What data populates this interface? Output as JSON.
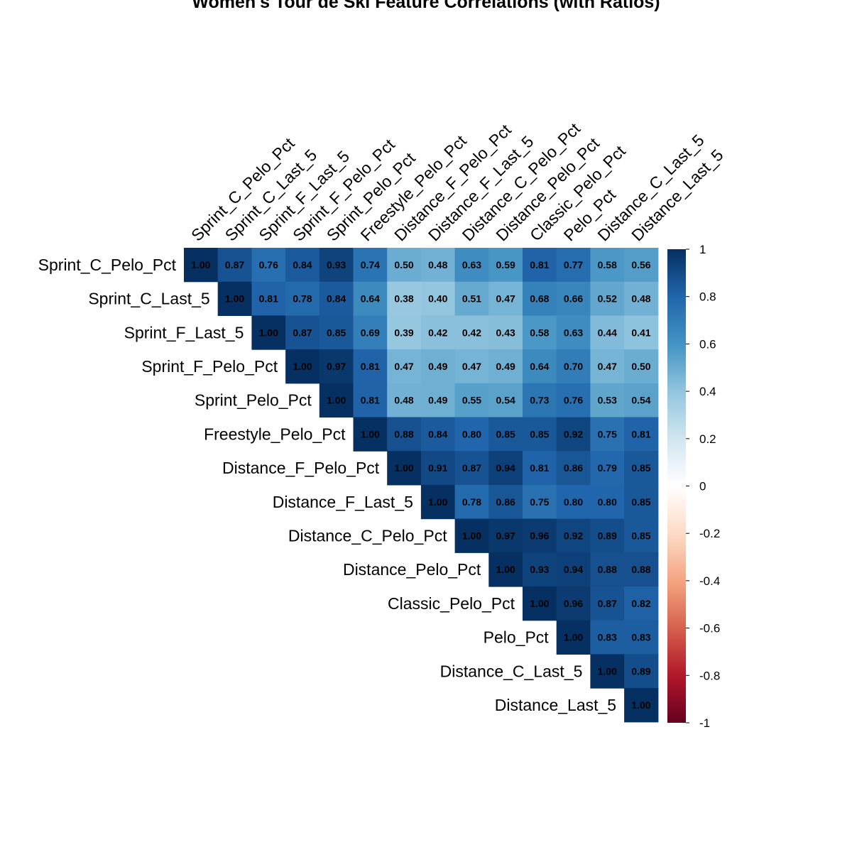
{
  "title": "Women's Tour de Ski Feature Correlations (with Ratios)",
  "chart_data": {
    "type": "heatmap",
    "subtype": "upper-triangular correlation matrix",
    "title": "Women's Tour de Ski Feature Correlations (with Ratios)",
    "variables": [
      "Sprint_C_Pelo_Pct",
      "Sprint_C_Last_5",
      "Sprint_F_Last_5",
      "Sprint_F_Pelo_Pct",
      "Sprint_Pelo_Pct",
      "Freestyle_Pelo_Pct",
      "Distance_F_Pelo_Pct",
      "Distance_F_Last_5",
      "Distance_C_Pelo_Pct",
      "Distance_Pelo_Pct",
      "Classic_Pelo_Pct",
      "Pelo_Pct",
      "Distance_C_Last_5",
      "Distance_Last_5"
    ],
    "matrix": [
      [
        1.0,
        0.87,
        0.76,
        0.84,
        0.93,
        0.74,
        0.5,
        0.48,
        0.63,
        0.59,
        0.81,
        0.77,
        0.58,
        0.56
      ],
      [
        null,
        1.0,
        0.81,
        0.78,
        0.84,
        0.64,
        0.38,
        0.4,
        0.51,
        0.47,
        0.68,
        0.66,
        0.52,
        0.48
      ],
      [
        null,
        null,
        1.0,
        0.87,
        0.85,
        0.69,
        0.39,
        0.42,
        0.42,
        0.43,
        0.58,
        0.63,
        0.44,
        0.41
      ],
      [
        null,
        null,
        null,
        1.0,
        0.97,
        0.81,
        0.47,
        0.49,
        0.47,
        0.49,
        0.64,
        0.7,
        0.47,
        0.5
      ],
      [
        null,
        null,
        null,
        null,
        1.0,
        0.81,
        0.48,
        0.49,
        0.55,
        0.54,
        0.73,
        0.76,
        0.53,
        0.54
      ],
      [
        null,
        null,
        null,
        null,
        null,
        1.0,
        0.88,
        0.84,
        0.8,
        0.85,
        0.85,
        0.92,
        0.75,
        0.81
      ],
      [
        null,
        null,
        null,
        null,
        null,
        null,
        1.0,
        0.91,
        0.87,
        0.94,
        0.81,
        0.86,
        0.79,
        0.85
      ],
      [
        null,
        null,
        null,
        null,
        null,
        null,
        null,
        1.0,
        0.78,
        0.86,
        0.75,
        0.8,
        0.8,
        0.85
      ],
      [
        null,
        null,
        null,
        null,
        null,
        null,
        null,
        null,
        1.0,
        0.97,
        0.96,
        0.92,
        0.89,
        0.85
      ],
      [
        null,
        null,
        null,
        null,
        null,
        null,
        null,
        null,
        null,
        1.0,
        0.93,
        0.94,
        0.88,
        0.88
      ],
      [
        null,
        null,
        null,
        null,
        null,
        null,
        null,
        null,
        null,
        null,
        1.0,
        0.96,
        0.87,
        0.82
      ],
      [
        null,
        null,
        null,
        null,
        null,
        null,
        null,
        null,
        null,
        null,
        null,
        1.0,
        0.83,
        0.83
      ],
      [
        null,
        null,
        null,
        null,
        null,
        null,
        null,
        null,
        null,
        null,
        null,
        null,
        1.0,
        0.89
      ],
      [
        null,
        null,
        null,
        null,
        null,
        null,
        null,
        null,
        null,
        null,
        null,
        null,
        null,
        1.0
      ]
    ],
    "value_format": "2 decimals",
    "color_scale": {
      "range": [
        -1,
        1
      ],
      "ticks": [
        1,
        0.8,
        0.6,
        0.4,
        0.2,
        0,
        -0.2,
        -0.4,
        -0.6,
        -0.8,
        -1
      ],
      "tick_labels": [
        "1",
        "0.8",
        "0.6",
        "0.4",
        "0.2",
        "0",
        "-0.2",
        "-0.4",
        "-0.6",
        "-0.8",
        "-1"
      ],
      "stops": [
        {
          "value": -1.0,
          "color": "#67001F"
        },
        {
          "value": -0.8,
          "color": "#B2182B"
        },
        {
          "value": -0.6,
          "color": "#D6604D"
        },
        {
          "value": -0.4,
          "color": "#F4A582"
        },
        {
          "value": -0.2,
          "color": "#FDDBC7"
        },
        {
          "value": 0.0,
          "color": "#FFFFFF"
        },
        {
          "value": 0.2,
          "color": "#D1E5F0"
        },
        {
          "value": 0.4,
          "color": "#92C5DE"
        },
        {
          "value": 0.6,
          "color": "#4393C3"
        },
        {
          "value": 0.8,
          "color": "#2166AC"
        },
        {
          "value": 1.0,
          "color": "#053061"
        }
      ]
    },
    "legend_position": "right",
    "grid": false
  }
}
